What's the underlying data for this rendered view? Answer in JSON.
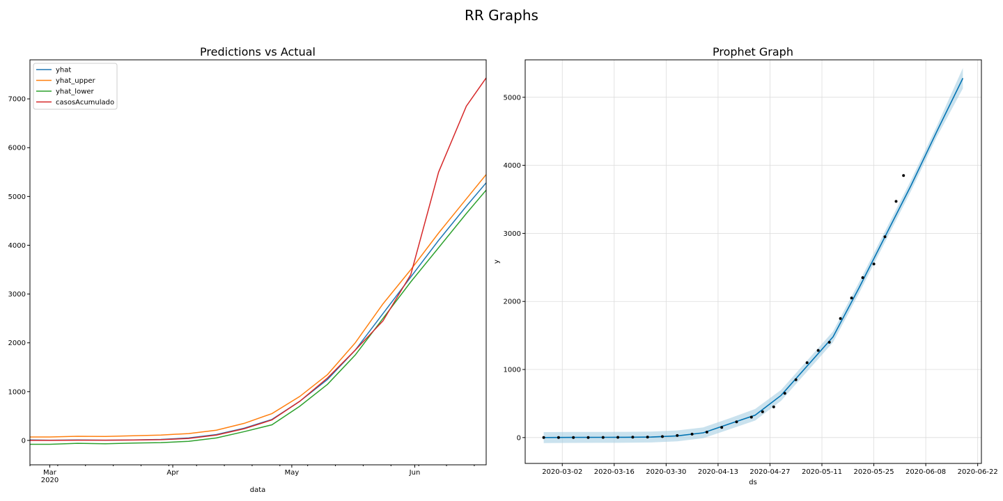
{
  "suptitle": "RR Graphs",
  "colors": {
    "yhat": "#1f77b4",
    "yhat_upper": "#ff7f0e",
    "yhat_lower": "#2ca02c",
    "casosAcumulado": "#d62728",
    "band": "#a6cee3",
    "points": "#000000"
  },
  "chart_data": [
    {
      "type": "line",
      "title": "Predictions vs Actual",
      "xlabel": "data",
      "ylabel": "",
      "xlim": [
        "2020-02-25",
        "2020-06-19"
      ],
      "ylim": [
        -500,
        7800
      ],
      "grid": false,
      "legend": "top-left",
      "x_ticks": [
        {
          "date": "2020-03-01",
          "label": "Mar",
          "sublabel": "2020"
        },
        {
          "date": "2020-04-01",
          "label": "Apr",
          "sublabel": ""
        },
        {
          "date": "2020-05-01",
          "label": "May",
          "sublabel": ""
        },
        {
          "date": "2020-06-01",
          "label": "Jun",
          "sublabel": ""
        }
      ],
      "y_ticks": [
        0,
        1000,
        2000,
        3000,
        4000,
        5000,
        6000,
        7000
      ],
      "x": [
        "2020-02-25",
        "2020-03-01",
        "2020-03-08",
        "2020-03-15",
        "2020-03-22",
        "2020-03-29",
        "2020-04-05",
        "2020-04-12",
        "2020-04-19",
        "2020-04-26",
        "2020-05-03",
        "2020-05-10",
        "2020-05-17",
        "2020-05-24",
        "2020-05-31",
        "2020-06-07",
        "2020-06-14",
        "2020-06-19"
      ],
      "series": [
        {
          "name": "yhat",
          "values": [
            10,
            5,
            10,
            5,
            10,
            20,
            50,
            120,
            250,
            430,
            800,
            1250,
            1850,
            2600,
            3350,
            4100,
            4800,
            5280
          ]
        },
        {
          "name": "yhat_upper",
          "values": [
            70,
            70,
            85,
            80,
            95,
            110,
            140,
            210,
            350,
            550,
            900,
            1350,
            2000,
            2800,
            3500,
            4250,
            4950,
            5450
          ]
        },
        {
          "name": "yhat_lower",
          "values": [
            -80,
            -80,
            -60,
            -70,
            -55,
            -45,
            -20,
            50,
            180,
            320,
            700,
            1150,
            1750,
            2500,
            3250,
            3950,
            4650,
            5130
          ]
        },
        {
          "name": "casosAcumulado",
          "values": [
            0,
            0,
            5,
            5,
            8,
            15,
            40,
            110,
            240,
            420,
            800,
            1280,
            1850,
            2450,
            3400,
            5500,
            6850,
            7430
          ]
        }
      ]
    },
    {
      "type": "scatter",
      "title": "Prophet Graph",
      "xlabel": "ds",
      "ylabel": "y",
      "xlim": [
        "2020-02-21",
        "2020-06-23"
      ],
      "ylim": [
        -380,
        5550
      ],
      "grid": true,
      "x_ticks": [
        "2020-03-02",
        "2020-03-16",
        "2020-03-30",
        "2020-04-13",
        "2020-04-27",
        "2020-05-11",
        "2020-05-25",
        "2020-06-08",
        "2020-06-22"
      ],
      "y_ticks": [
        0,
        1000,
        2000,
        3000,
        4000,
        5000
      ],
      "forecast": {
        "x": [
          "2020-02-26",
          "2020-03-05",
          "2020-03-12",
          "2020-03-19",
          "2020-03-26",
          "2020-04-02",
          "2020-04-09",
          "2020-04-16",
          "2020-04-23",
          "2020-04-30",
          "2020-05-07",
          "2020-05-14",
          "2020-05-21",
          "2020-05-28",
          "2020-06-04",
          "2020-06-11",
          "2020-06-18"
        ],
        "yhat": [
          0,
          2,
          3,
          4,
          8,
          25,
          70,
          200,
          330,
          620,
          1050,
          1480,
          2200,
          2950,
          3700,
          4500,
          5280
        ],
        "upper": [
          80,
          82,
          83,
          84,
          88,
          105,
          150,
          280,
          420,
          700,
          1130,
          1560,
          2280,
          3030,
          3780,
          4580,
          5430
        ],
        "lower": [
          -80,
          -78,
          -77,
          -76,
          -72,
          -55,
          -10,
          120,
          250,
          540,
          970,
          1400,
          2120,
          2870,
          3620,
          4420,
          5130
        ]
      },
      "points": {
        "x": [
          "2020-02-26",
          "2020-03-01",
          "2020-03-05",
          "2020-03-09",
          "2020-03-13",
          "2020-03-17",
          "2020-03-21",
          "2020-03-25",
          "2020-03-29",
          "2020-04-02",
          "2020-04-06",
          "2020-04-10",
          "2020-04-14",
          "2020-04-18",
          "2020-04-22",
          "2020-04-25",
          "2020-04-28",
          "2020-05-01",
          "2020-05-04",
          "2020-05-07",
          "2020-05-10",
          "2020-05-13",
          "2020-05-16",
          "2020-05-19",
          "2020-05-22",
          "2020-05-25",
          "2020-05-28",
          "2020-05-31",
          "2020-06-02"
        ],
        "y": [
          0,
          0,
          0,
          1,
          2,
          3,
          5,
          8,
          15,
          30,
          50,
          80,
          150,
          230,
          300,
          380,
          450,
          650,
          850,
          1100,
          1280,
          1400,
          1750,
          2050,
          2350,
          2550,
          2950,
          3470,
          3850
        ]
      }
    }
  ]
}
